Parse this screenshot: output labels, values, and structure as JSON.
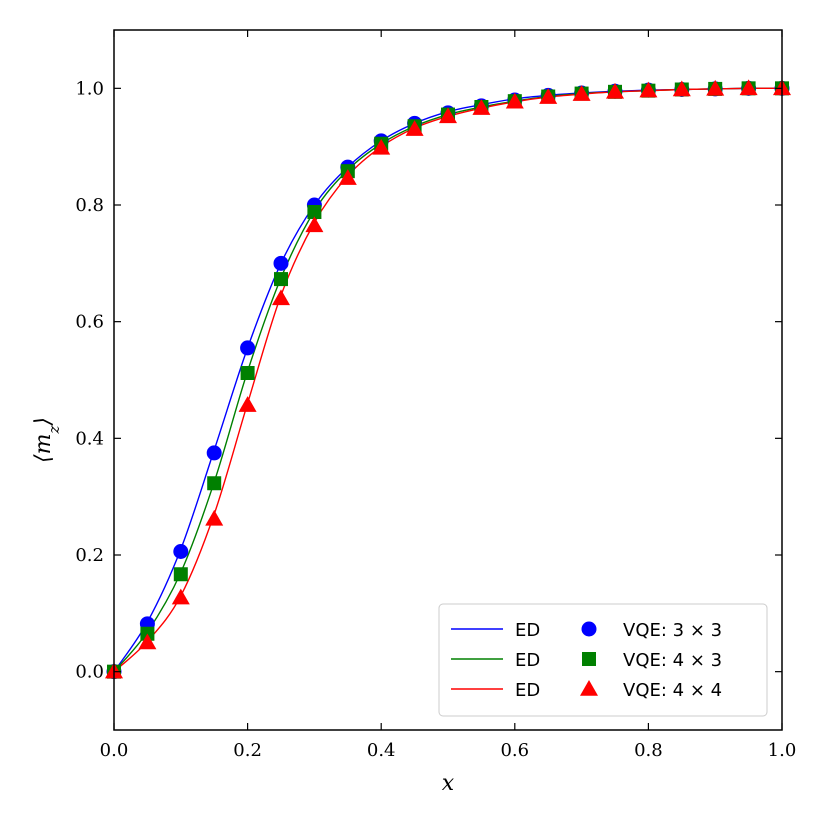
{
  "chart_data": {
    "type": "line",
    "xlabel": "x",
    "ylabel": "⟨m_z⟩",
    "xlim": [
      0.0,
      1.0
    ],
    "ylim": [
      -0.1,
      1.1
    ],
    "xticks": [
      "0.0",
      "0.2",
      "0.4",
      "0.6",
      "0.8",
      "1.0"
    ],
    "yticks": [
      "0.0",
      "0.2",
      "0.4",
      "0.6",
      "0.8",
      "1.0"
    ],
    "grid": false,
    "legend_position": "lower-right",
    "x": [
      0.0,
      0.05,
      0.1,
      0.15,
      0.2,
      0.25,
      0.3,
      0.35,
      0.4,
      0.45,
      0.5,
      0.55,
      0.6,
      0.65,
      0.7,
      0.75,
      0.8,
      0.85,
      0.9,
      0.95,
      1.0
    ],
    "series": [
      {
        "name": "ED",
        "marker_name": "VQE: 3 × 3",
        "color": "#0000ff",
        "marker": "circle",
        "ed": [
          0.0,
          0.085,
          0.21,
          0.38,
          0.555,
          0.7,
          0.8,
          0.865,
          0.91,
          0.94,
          0.96,
          0.972,
          0.982,
          0.988,
          0.992,
          0.995,
          0.997,
          0.998,
          0.999,
          1.0,
          1.0
        ],
        "vqe": [
          0.0,
          0.082,
          0.206,
          0.375,
          0.555,
          0.7,
          0.8,
          0.865,
          0.91,
          0.94,
          0.958,
          0.97,
          0.98,
          0.988,
          0.992,
          0.995,
          0.997,
          0.998,
          0.999,
          1.0,
          1.0
        ]
      },
      {
        "name": "ED",
        "marker_name": "VQE: 4 × 3",
        "color": "#008000",
        "marker": "square",
        "ed": [
          0.0,
          0.068,
          0.17,
          0.325,
          0.515,
          0.675,
          0.79,
          0.86,
          0.905,
          0.935,
          0.955,
          0.968,
          0.978,
          0.986,
          0.991,
          0.994,
          0.996,
          0.998,
          0.999,
          1.0,
          1.0
        ],
        "vqe": [
          0.0,
          0.065,
          0.167,
          0.323,
          0.512,
          0.673,
          0.788,
          0.858,
          0.905,
          0.935,
          0.955,
          0.968,
          0.978,
          0.986,
          0.991,
          0.994,
          0.996,
          0.998,
          0.999,
          1.0,
          1.0
        ]
      },
      {
        "name": "ED",
        "marker_name": "VQE: 4 × 4",
        "color": "#ff0000",
        "marker": "triangle",
        "ed": [
          0.0,
          0.052,
          0.13,
          0.27,
          0.46,
          0.645,
          0.77,
          0.85,
          0.9,
          0.932,
          0.952,
          0.966,
          0.977,
          0.985,
          0.99,
          0.994,
          0.996,
          0.998,
          0.999,
          1.0,
          1.0
        ],
        "vqe": [
          0.0,
          0.05,
          0.127,
          0.262,
          0.457,
          0.64,
          0.765,
          0.846,
          0.898,
          0.93,
          0.952,
          0.966,
          0.977,
          0.985,
          0.99,
          0.994,
          0.996,
          0.998,
          0.999,
          1.0,
          1.0
        ]
      }
    ]
  }
}
